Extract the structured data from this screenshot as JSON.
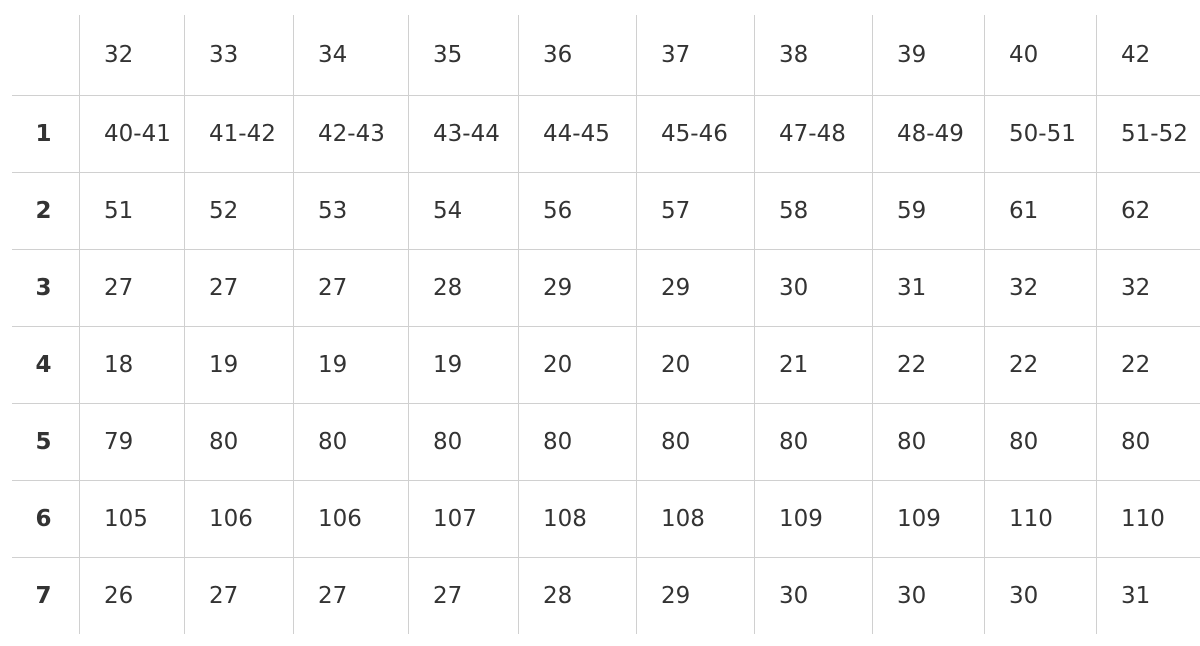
{
  "table": {
    "header": [
      "32",
      "33",
      "34",
      "35",
      "36",
      "37",
      "38",
      "39",
      "40",
      "42"
    ],
    "rows": [
      {
        "label": "1",
        "cells": [
          "40-41",
          "41-42",
          "42-43",
          "43-44",
          "44-45",
          "45-46",
          "47-48",
          "48-49",
          "50-51",
          "51-52"
        ]
      },
      {
        "label": "2",
        "cells": [
          "51",
          "52",
          "53",
          "54",
          "56",
          "57",
          "58",
          "59",
          "61",
          "62"
        ]
      },
      {
        "label": "3",
        "cells": [
          "27",
          "27",
          "27",
          "28",
          "29",
          "29",
          "30",
          "31",
          "32",
          "32"
        ]
      },
      {
        "label": "4",
        "cells": [
          "18",
          "19",
          "19",
          "19",
          "20",
          "20",
          "21",
          "22",
          "22",
          "22"
        ]
      },
      {
        "label": "5",
        "cells": [
          "79",
          "80",
          "80",
          "80",
          "80",
          "80",
          "80",
          "80",
          "80",
          "80"
        ]
      },
      {
        "label": "6",
        "cells": [
          "105",
          "106",
          "106",
          "107",
          "108",
          "108",
          "109",
          "109",
          "110",
          "110"
        ]
      },
      {
        "label": "7",
        "cells": [
          "26",
          "27",
          "27",
          "27",
          "28",
          "29",
          "30",
          "30",
          "30",
          "31"
        ]
      }
    ]
  }
}
